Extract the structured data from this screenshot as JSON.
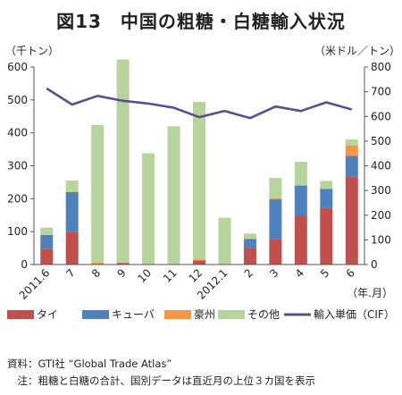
{
  "figure_title": "図13　中国の粗糖・白糖輸入状況",
  "chart_data": {
    "type": "bar",
    "stacked": true,
    "categories": [
      "2011.6",
      "7",
      "8",
      "9",
      "10",
      "11",
      "12",
      "2012.1",
      "2",
      "3",
      "4",
      "5",
      "6"
    ],
    "xlabel": "（年.月）",
    "left_axis": {
      "unit": "（千トン）",
      "ylim": [
        0,
        600
      ],
      "ticks": [
        0,
        100,
        200,
        300,
        400,
        500,
        600
      ]
    },
    "right_axis": {
      "unit": "（米ドル／トン）",
      "ylim": [
        0,
        800
      ],
      "ticks": [
        0,
        100,
        200,
        300,
        400,
        500,
        600,
        700,
        800
      ]
    },
    "series": [
      {
        "name": "タイ",
        "color": "#c0504d",
        "values": [
          48,
          100,
          0,
          5,
          0,
          0,
          12,
          0,
          50,
          78,
          148,
          172,
          268
        ]
      },
      {
        "name": "キューバ",
        "color": "#4f81bd",
        "values": [
          42,
          120,
          0,
          0,
          0,
          0,
          0,
          0,
          28,
          120,
          92,
          58,
          62
        ]
      },
      {
        "name": "豪州",
        "color": "#f79646",
        "values": [
          0,
          0,
          6,
          0,
          0,
          0,
          4,
          0,
          0,
          3,
          0,
          0,
          32
        ]
      },
      {
        "name": "その他",
        "color": "#b7d49c",
        "values": [
          22,
          35,
          418,
          618,
          338,
          420,
          478,
          142,
          16,
          62,
          72,
          24,
          18
        ]
      }
    ],
    "line_series": {
      "name": "輸入単価（CIF）",
      "color": "#5a4e8f",
      "axis": "right",
      "values": [
        713,
        648,
        683,
        663,
        652,
        635,
        597,
        622,
        593,
        640,
        622,
        657,
        628
      ]
    },
    "legend_position": "bottom",
    "grid": false
  },
  "notes": {
    "source": "資料：GTI社 “Global Trade Atlas”",
    "note": "　注：粗糖と白糖の合計、国別データは直近月の上位３カ国を表示"
  }
}
